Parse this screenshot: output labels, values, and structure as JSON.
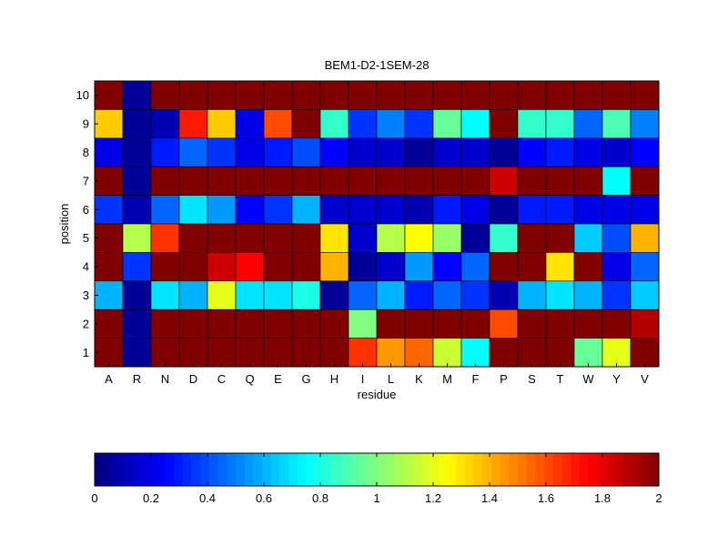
{
  "chart_data": {
    "type": "heatmap",
    "title": "BEM1-D2-1SEM-28",
    "xlabel": "residue",
    "ylabel": "position",
    "x_categories": [
      "A",
      "R",
      "N",
      "D",
      "C",
      "Q",
      "E",
      "G",
      "H",
      "I",
      "L",
      "K",
      "M",
      "F",
      "P",
      "S",
      "T",
      "W",
      "Y",
      "V"
    ],
    "y_categories": [
      "1",
      "2",
      "3",
      "4",
      "5",
      "6",
      "7",
      "8",
      "9",
      "10"
    ],
    "rows_top_to_bottom": [
      "10",
      "9",
      "8",
      "7",
      "6",
      "5",
      "4",
      "3",
      "2",
      "1"
    ],
    "values_top_to_bottom": [
      [
        2,
        0.05,
        2,
        2,
        2,
        2,
        2,
        2,
        2,
        2,
        2,
        2,
        2,
        2,
        2,
        2,
        2,
        2,
        2,
        2
      ],
      [
        1.35,
        0.05,
        0.1,
        1.7,
        1.35,
        0.2,
        1.6,
        2,
        0.85,
        0.35,
        0.5,
        0.35,
        0.95,
        0.75,
        2,
        0.85,
        0.85,
        0.45,
        0.9,
        0.5
      ],
      [
        0.2,
        0.05,
        0.3,
        0.45,
        0.35,
        0.2,
        0.3,
        0.4,
        0.25,
        0.15,
        0.15,
        0.05,
        0.15,
        0.15,
        0.05,
        0.25,
        0.3,
        0.2,
        0.15,
        0.25
      ],
      [
        2,
        0.05,
        2,
        2,
        2,
        2,
        2,
        2,
        2,
        2,
        2,
        2,
        2,
        2,
        1.85,
        2,
        2,
        2,
        0.75,
        2
      ],
      [
        0.35,
        0.1,
        0.45,
        0.7,
        0.55,
        0.25,
        0.35,
        0.6,
        0.15,
        0.15,
        0.15,
        0.1,
        0.3,
        0.2,
        0.05,
        0.3,
        0.3,
        0.2,
        0.2,
        0.2
      ],
      [
        2,
        1.1,
        1.65,
        2,
        2,
        2,
        2,
        2,
        1.3,
        0.15,
        1.1,
        1.25,
        1.05,
        0.05,
        0.85,
        2,
        2,
        0.65,
        0.4,
        1.4
      ],
      [
        2,
        0.35,
        2,
        2,
        1.85,
        1.75,
        2,
        2,
        1.4,
        0.05,
        0.15,
        0.55,
        0.25,
        0.45,
        2,
        2,
        1.3,
        2,
        0.2,
        0.45
      ],
      [
        0.6,
        0.05,
        0.7,
        0.6,
        1.2,
        0.7,
        0.7,
        0.8,
        0.05,
        0.45,
        0.6,
        0.3,
        0.45,
        0.35,
        0.1,
        0.6,
        0.7,
        0.6,
        0.35,
        0.65
      ],
      [
        2,
        0.05,
        2,
        2,
        2,
        2,
        2,
        2,
        2,
        1.0,
        2,
        2,
        2,
        2,
        1.6,
        2,
        2,
        2,
        2,
        1.9
      ],
      [
        2,
        0.05,
        2,
        2,
        2,
        2,
        2,
        2,
        2,
        1.65,
        1.45,
        1.55,
        1.15,
        0.75,
        2,
        2,
        2,
        0.95,
        1.2,
        2
      ]
    ],
    "clim": [
      0,
      2
    ],
    "colormap": "jet",
    "colorbar": {
      "orientation": "horizontal",
      "placement": "bottom",
      "ticks": [
        "0",
        "0.2",
        "0.4",
        "0.6",
        "0.8",
        "1",
        "1.2",
        "1.4",
        "1.6",
        "1.8",
        "2"
      ]
    },
    "grid": false
  }
}
